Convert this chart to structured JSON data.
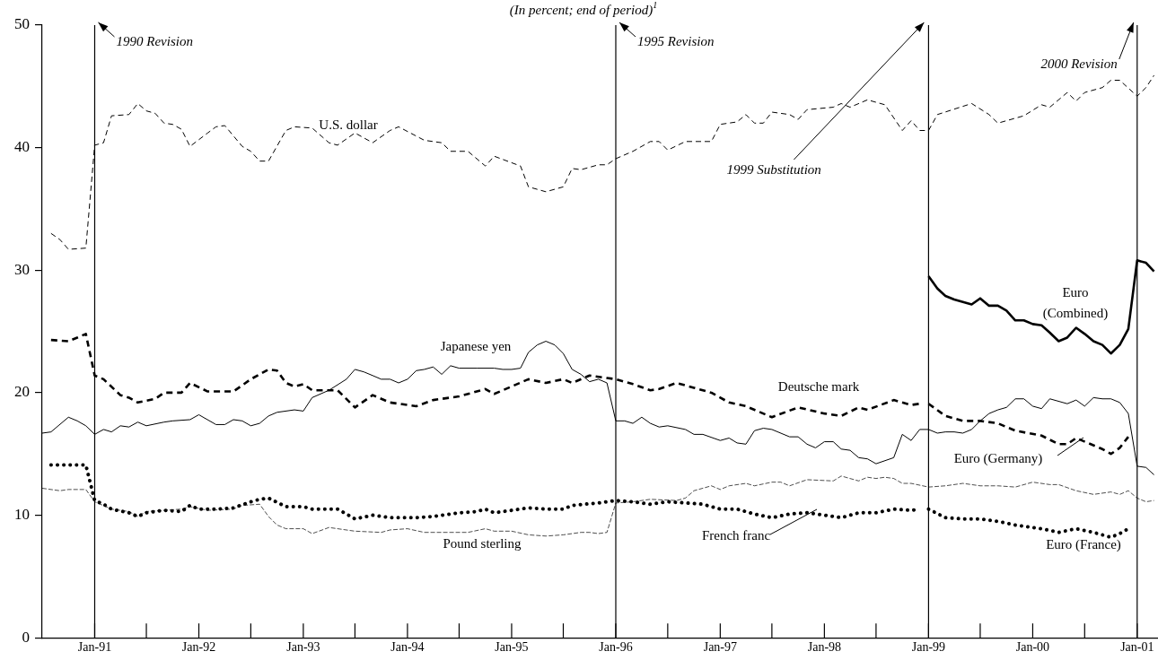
{
  "chart_data": {
    "type": "line",
    "title": "(In percent; end of period)$^{1}$",
    "xlim": [
      "1990-07-01",
      "2001-03-15"
    ],
    "xticks": [
      {
        "value": "1991-01",
        "label": "Jan-91"
      },
      {
        "value": "1991-07",
        "label": null
      },
      {
        "value": "1992-01",
        "label": "Jan-92"
      },
      {
        "value": "1992-07",
        "label": null
      },
      {
        "value": "1993-01",
        "label": "Jan-93"
      },
      {
        "value": "1993-07",
        "label": null
      },
      {
        "value": "1994-01",
        "label": "Jan-94"
      },
      {
        "value": "1994-07",
        "label": null
      },
      {
        "value": "1995-01",
        "label": "Jan-95"
      },
      {
        "value": "1995-07",
        "label": null
      },
      {
        "value": "1996-01",
        "label": "Jan-96"
      },
      {
        "value": "1996-07",
        "label": null
      },
      {
        "value": "1997-01",
        "label": "Jan-97"
      },
      {
        "value": "1997-07",
        "label": null
      },
      {
        "value": "1998-01",
        "label": "Jan-98"
      },
      {
        "value": "1998-07",
        "label": null
      },
      {
        "value": "1999-01",
        "label": "Jan-99"
      },
      {
        "value": "1999-07",
        "label": null
      },
      {
        "value": "2000-01",
        "label": "Jan-00"
      },
      {
        "value": "2000-07",
        "label": null
      },
      {
        "value": "2001-01",
        "label": "Jan-01"
      }
    ],
    "ylim": [
      0,
      50
    ],
    "yticks": [
      0,
      10,
      20,
      30,
      40,
      50
    ],
    "grid": false,
    "legend": false,
    "marker": "none",
    "ref_lines": [
      {
        "axis": "x",
        "value": "1991-01",
        "label": "1990 Revision"
      },
      {
        "axis": "x",
        "value": "1996-01",
        "label": "1995 Revision"
      },
      {
        "axis": "x",
        "value": "1999-01",
        "label": "1999 Substitution"
      },
      {
        "axis": "x",
        "value": "2001-01",
        "label": "2000 Revision"
      }
    ],
    "series": [
      {
        "name": "U.S. dollar",
        "color": "#000000",
        "line_style": "dashed",
        "x": [
          "1990-08",
          "1990-09",
          "1990-10",
          "1990-12",
          "1991-01",
          "1991-02",
          "1991-03",
          "1991-05",
          "1991-06",
          "1991-07",
          "1991-08",
          "1991-09",
          "1991-10",
          "1991-11",
          "1991-12",
          "1992-02",
          "1992-03",
          "1992-04",
          "1992-06",
          "1992-07",
          "1992-08",
          "1992-09",
          "1992-11",
          "1992-12",
          "1993-02",
          "1993-04",
          "1993-05",
          "1993-07",
          "1993-09",
          "1993-11",
          "1993-12",
          "1994-03",
          "1994-05",
          "1994-06",
          "1994-08",
          "1994-10",
          "1994-11",
          "1995-02",
          "1995-03",
          "1995-05",
          "1995-07",
          "1995-08",
          "1995-09",
          "1995-11",
          "1995-12",
          "1996-01",
          "1996-03",
          "1996-05",
          "1996-06",
          "1996-07",
          "1996-09",
          "1996-12",
          "1997-01",
          "1997-03",
          "1997-04",
          "1997-05",
          "1997-06",
          "1997-07",
          "1997-09",
          "1997-10",
          "1997-11",
          "1998-02",
          "1998-03",
          "1998-04",
          "1998-06",
          "1998-08",
          "1998-10",
          "1998-11",
          "1998-12",
          "1999-01",
          "1999-02",
          "1999-06",
          "1999-08",
          "1999-09",
          "1999-12",
          "2000-02",
          "2000-03",
          "2000-05",
          "2000-06",
          "2000-07",
          "2000-09",
          "2000-10",
          "2000-11",
          "2001-01",
          "2001-02",
          "2001-03"
        ],
        "values": [
          33.0,
          32.5,
          31.7,
          31.8,
          40.2,
          40.4,
          42.6,
          42.7,
          43.6,
          43.0,
          42.8,
          42.0,
          41.9,
          41.5,
          40.1,
          41.2,
          41.7,
          41.8,
          40.1,
          39.7,
          38.9,
          38.9,
          41.4,
          41.7,
          41.6,
          40.4,
          40.2,
          41.2,
          40.4,
          41.4,
          41.7,
          40.6,
          40.4,
          39.7,
          39.7,
          38.5,
          39.3,
          38.5,
          36.8,
          36.4,
          36.8,
          38.3,
          38.2,
          38.6,
          38.6,
          39.1,
          39.7,
          40.5,
          40.5,
          39.8,
          40.5,
          40.5,
          41.9,
          42.1,
          42.7,
          42.0,
          42.0,
          42.9,
          42.7,
          42.3,
          43.1,
          43.3,
          43.6,
          43.3,
          43.9,
          43.5,
          41.4,
          42.2,
          41.4,
          41.4,
          42.7,
          43.6,
          42.7,
          42.0,
          42.6,
          43.5,
          43.3,
          44.5,
          43.8,
          44.5,
          44.9,
          45.5,
          45.5,
          44.2,
          44.9,
          45.9
        ]
      },
      {
        "name": "Japanese yen",
        "color": "#000000",
        "line_style": "solid",
        "x": [
          "1990-07",
          "1990-08",
          "1990-10",
          "1990-11",
          "1990-12",
          "1991-01",
          "1991-02",
          "1991-03",
          "1991-04",
          "1991-05",
          "1991-06",
          "1991-07",
          "1991-09",
          "1991-10",
          "1991-12",
          "1992-01",
          "1992-03",
          "1992-04",
          "1992-05",
          "1992-06",
          "1992-07",
          "1992-08",
          "1992-09",
          "1992-10",
          "1992-12",
          "1993-01",
          "1993-02",
          "1993-04",
          "1993-06",
          "1993-07",
          "1993-08",
          "1993-09",
          "1993-10",
          "1993-11",
          "1993-12",
          "1994-01",
          "1994-02",
          "1994-03",
          "1994-04",
          "1994-05",
          "1994-06",
          "1994-07",
          "1994-09",
          "1994-11",
          "1994-12",
          "1995-01",
          "1995-02",
          "1995-03",
          "1995-04",
          "1995-05",
          "1995-06",
          "1995-07",
          "1995-08",
          "1995-09",
          "1995-10",
          "1995-11",
          "1995-12",
          "1996-01",
          "1996-02",
          "1996-03",
          "1996-04",
          "1996-05",
          "1996-06",
          "1996-07",
          "1996-09",
          "1996-10",
          "1996-11",
          "1997-01",
          "1997-02",
          "1997-03",
          "1997-04",
          "1997-05",
          "1997-06",
          "1997-07",
          "1997-09",
          "1997-10",
          "1997-11",
          "1997-12",
          "1998-01",
          "1998-02",
          "1998-03",
          "1998-04",
          "1998-05",
          "1998-06",
          "1998-07",
          "1998-09",
          "1998-10",
          "1998-11",
          "1998-12",
          "1999-01",
          "1999-02",
          "1999-03",
          "1999-04",
          "1999-05",
          "1999-06",
          "1999-07",
          "1999-08",
          "1999-09",
          "1999-10",
          "1999-11",
          "1999-12",
          "2000-01",
          "2000-02",
          "2000-03",
          "2000-05",
          "2000-06",
          "2000-07",
          "2000-08",
          "2000-09",
          "2000-10",
          "2000-11",
          "2000-12",
          "2001-01",
          "2001-02",
          "2001-03"
        ],
        "values": [
          16.7,
          16.8,
          18.0,
          17.7,
          17.3,
          16.6,
          17.0,
          16.8,
          17.3,
          17.2,
          17.6,
          17.3,
          17.6,
          17.7,
          17.8,
          18.2,
          17.4,
          17.4,
          17.8,
          17.7,
          17.3,
          17.5,
          18.1,
          18.4,
          18.6,
          18.5,
          19.6,
          20.2,
          21.1,
          21.9,
          21.7,
          21.4,
          21.1,
          21.1,
          20.8,
          21.1,
          21.8,
          21.9,
          22.1,
          21.5,
          22.2,
          22.0,
          22.0,
          22.0,
          21.9,
          21.9,
          22.0,
          23.3,
          23.9,
          24.2,
          23.9,
          23.2,
          21.9,
          21.5,
          20.9,
          21.1,
          20.8,
          17.7,
          17.7,
          17.5,
          18.0,
          17.5,
          17.2,
          17.3,
          17.0,
          16.6,
          16.6,
          16.1,
          16.3,
          15.9,
          15.8,
          16.9,
          17.1,
          17.0,
          16.4,
          16.4,
          15.8,
          15.5,
          16.0,
          16.0,
          15.4,
          15.3,
          14.7,
          14.6,
          14.2,
          14.7,
          16.6,
          16.1,
          17.0,
          17.0,
          16.7,
          16.8,
          16.8,
          16.7,
          17.0,
          17.7,
          18.3,
          18.6,
          18.8,
          19.5,
          19.5,
          18.9,
          18.7,
          19.5,
          19.1,
          19.4,
          18.9,
          19.6,
          19.5,
          19.5,
          19.2,
          18.3,
          14.0,
          13.9,
          13.3
        ]
      },
      {
        "name": "Deutsche mark",
        "color": "#000000",
        "line_style": "dashed",
        "x": [
          "1990-08",
          "1990-10",
          "1990-11",
          "1990-12",
          "1991-01",
          "1991-02",
          "1991-04",
          "1991-05",
          "1991-06",
          "1991-08",
          "1991-09",
          "1991-11",
          "1991-12",
          "1992-02",
          "1992-05",
          "1992-07",
          "1992-09",
          "1992-10",
          "1992-11",
          "1992-12",
          "1993-01",
          "1993-02",
          "1993-05",
          "1993-07",
          "1993-09",
          "1993-11",
          "1994-02",
          "1994-04",
          "1994-07",
          "1994-10",
          "1994-11",
          "1995-03",
          "1995-05",
          "1995-07",
          "1995-08",
          "1995-10",
          "1995-12",
          "1996-01",
          "1996-03",
          "1996-05",
          "1996-06",
          "1996-08",
          "1996-10",
          "1996-12",
          "1997-02",
          "1997-04",
          "1997-05",
          "1997-07",
          "1997-10",
          "1998-01",
          "1998-03",
          "1998-05",
          "1998-06",
          "1998-09",
          "1998-11",
          "1998-12"
        ],
        "values": [
          24.3,
          24.2,
          24.5,
          24.8,
          21.4,
          21.1,
          19.8,
          19.6,
          19.2,
          19.5,
          20.0,
          20.0,
          20.8,
          20.1,
          20.1,
          21.1,
          21.9,
          21.8,
          20.8,
          20.5,
          20.7,
          20.2,
          20.2,
          18.8,
          19.8,
          19.2,
          18.9,
          19.4,
          19.7,
          20.3,
          19.9,
          21.1,
          20.8,
          21.1,
          20.8,
          21.4,
          21.2,
          21.1,
          20.7,
          20.2,
          20.3,
          20.8,
          20.4,
          20.0,
          19.2,
          18.9,
          18.6,
          18.0,
          18.8,
          18.3,
          18.1,
          18.8,
          18.6,
          19.4,
          19.0,
          19.1
        ]
      },
      {
        "name": "Pound sterling",
        "color": "#000000",
        "line_style": "dashed",
        "x": [
          "1990-07",
          "1990-09",
          "1990-10",
          "1990-12",
          "1991-01",
          "1991-03",
          "1991-05",
          "1991-06",
          "1991-07",
          "1991-09",
          "1991-11",
          "1991-12",
          "1992-02",
          "1992-05",
          "1992-06",
          "1992-08",
          "1992-09",
          "1992-10",
          "1992-11",
          "1993-01",
          "1993-02",
          "1993-04",
          "1993-07",
          "1993-10",
          "1993-11",
          "1994-01",
          "1994-03",
          "1994-06",
          "1994-08",
          "1994-10",
          "1994-11",
          "1995-01",
          "1995-03",
          "1995-05",
          "1995-07",
          "1995-09",
          "1995-10",
          "1995-11",
          "1995-12",
          "1996-01",
          "1996-03",
          "1996-05",
          "1996-08",
          "1996-09",
          "1996-10",
          "1996-12",
          "1997-01",
          "1997-02",
          "1997-04",
          "1997-05",
          "1997-07",
          "1997-08",
          "1997-09",
          "1997-11",
          "1998-02",
          "1998-03",
          "1998-05",
          "1998-06",
          "1998-07",
          "1998-08",
          "1998-09",
          "1998-10",
          "1998-11",
          "1999-01",
          "1999-03",
          "1999-05",
          "1999-07",
          "1999-09",
          "1999-11",
          "2000-01",
          "2000-03",
          "2000-04",
          "2000-06",
          "2000-08",
          "2000-10",
          "2000-11",
          "2000-12",
          "2001-01",
          "2001-02",
          "2001-03"
        ],
        "values": [
          12.2,
          12.0,
          12.1,
          12.1,
          11.1,
          10.5,
          10.3,
          9.9,
          10.3,
          10.4,
          10.5,
          10.7,
          10.4,
          10.5,
          10.8,
          10.9,
          9.9,
          9.2,
          8.9,
          8.9,
          8.5,
          9.0,
          8.7,
          8.6,
          8.8,
          8.9,
          8.6,
          8.6,
          8.6,
          8.9,
          8.7,
          8.7,
          8.4,
          8.3,
          8.4,
          8.6,
          8.6,
          8.5,
          8.6,
          11.0,
          11.1,
          11.3,
          11.2,
          11.4,
          12.0,
          12.4,
          12.1,
          12.4,
          12.6,
          12.4,
          12.7,
          12.7,
          12.4,
          12.9,
          12.8,
          13.2,
          12.8,
          13.1,
          13.0,
          13.1,
          13.0,
          12.6,
          12.6,
          12.3,
          12.4,
          12.6,
          12.4,
          12.4,
          12.3,
          12.7,
          12.5,
          12.5,
          12.0,
          11.7,
          11.9,
          11.7,
          12.0,
          11.4,
          11.1,
          11.2
        ]
      },
      {
        "name": "French franc",
        "color": "#000000",
        "line_style": "dotted",
        "x": [
          "1990-08",
          "1990-10",
          "1990-12",
          "1991-01",
          "1991-02",
          "1991-03",
          "1991-05",
          "1991-06",
          "1991-07",
          "1991-09",
          "1991-11",
          "1991-12",
          "1992-01",
          "1992-03",
          "1992-05",
          "1992-07",
          "1992-08",
          "1992-09",
          "1992-11",
          "1993-01",
          "1993-02",
          "1993-04",
          "1993-05",
          "1993-06",
          "1993-07",
          "1993-09",
          "1993-11",
          "1994-02",
          "1994-04",
          "1994-07",
          "1994-09",
          "1994-10",
          "1994-11",
          "1995-01",
          "1995-03",
          "1995-05",
          "1995-07",
          "1995-08",
          "1995-11",
          "1996-01",
          "1996-03",
          "1996-05",
          "1996-07",
          "1996-09",
          "1996-11",
          "1997-01",
          "1997-03",
          "1997-05",
          "1997-07",
          "1997-09",
          "1997-11",
          "1997-12",
          "1998-02",
          "1998-03",
          "1998-05",
          "1998-07",
          "1998-09",
          "1998-11",
          "1998-12"
        ],
        "values": [
          14.1,
          14.1,
          14.1,
          11.2,
          10.9,
          10.5,
          10.2,
          9.9,
          10.2,
          10.4,
          10.3,
          10.8,
          10.5,
          10.5,
          10.6,
          11.1,
          11.3,
          11.4,
          10.7,
          10.7,
          10.5,
          10.5,
          10.5,
          10.1,
          9.7,
          10.0,
          9.8,
          9.8,
          9.9,
          10.2,
          10.3,
          10.5,
          10.2,
          10.4,
          10.6,
          10.5,
          10.5,
          10.8,
          11.0,
          11.2,
          11.1,
          10.9,
          11.1,
          11.0,
          10.9,
          10.5,
          10.5,
          10.1,
          9.8,
          10.1,
          10.2,
          10.1,
          9.9,
          9.8,
          10.2,
          10.2,
          10.5,
          10.4,
          10.5
        ]
      },
      {
        "name": "Euro (Combined)",
        "color": "#000000",
        "line_style": "solid",
        "x": [
          "1999-01",
          "1999-02",
          "1999-03",
          "1999-04",
          "1999-06",
          "1999-07",
          "1999-08",
          "1999-09",
          "1999-10",
          "1999-11",
          "1999-12",
          "2000-01",
          "2000-02",
          "2000-03",
          "2000-04",
          "2000-05",
          "2000-06",
          "2000-07",
          "2000-08",
          "2000-09",
          "2000-10",
          "2000-11",
          "2000-12",
          "2001-01",
          "2001-02",
          "2001-03"
        ],
        "values": [
          29.5,
          28.5,
          27.9,
          27.6,
          27.2,
          27.7,
          27.1,
          27.1,
          26.7,
          25.9,
          25.9,
          25.6,
          25.5,
          24.9,
          24.2,
          24.5,
          25.3,
          24.8,
          24.2,
          23.9,
          23.2,
          23.9,
          25.2,
          30.8,
          30.6,
          29.9
        ]
      },
      {
        "name": "Euro (Germany)",
        "color": "#000000",
        "line_style": "dashed",
        "x": [
          "1999-01",
          "1999-03",
          "1999-05",
          "1999-07",
          "1999-09",
          "1999-11",
          "2000-02",
          "2000-04",
          "2000-05",
          "2000-06",
          "2000-09",
          "2000-10",
          "2000-11",
          "2000-12"
        ],
        "values": [
          19.1,
          18.1,
          17.7,
          17.7,
          17.5,
          16.9,
          16.5,
          15.8,
          15.8,
          16.3,
          15.4,
          15.0,
          15.5,
          16.4
        ]
      },
      {
        "name": "Euro (France)",
        "color": "#000000",
        "line_style": "dotted",
        "x": [
          "1999-01",
          "1999-03",
          "1999-05",
          "1999-07",
          "1999-09",
          "1999-11",
          "2000-02",
          "2000-04",
          "2000-06",
          "2000-08",
          "2000-10",
          "2000-11",
          "2000-12"
        ],
        "values": [
          10.5,
          9.8,
          9.7,
          9.7,
          9.5,
          9.2,
          8.9,
          8.6,
          8.9,
          8.6,
          8.2,
          8.5,
          8.9
        ]
      }
    ]
  }
}
